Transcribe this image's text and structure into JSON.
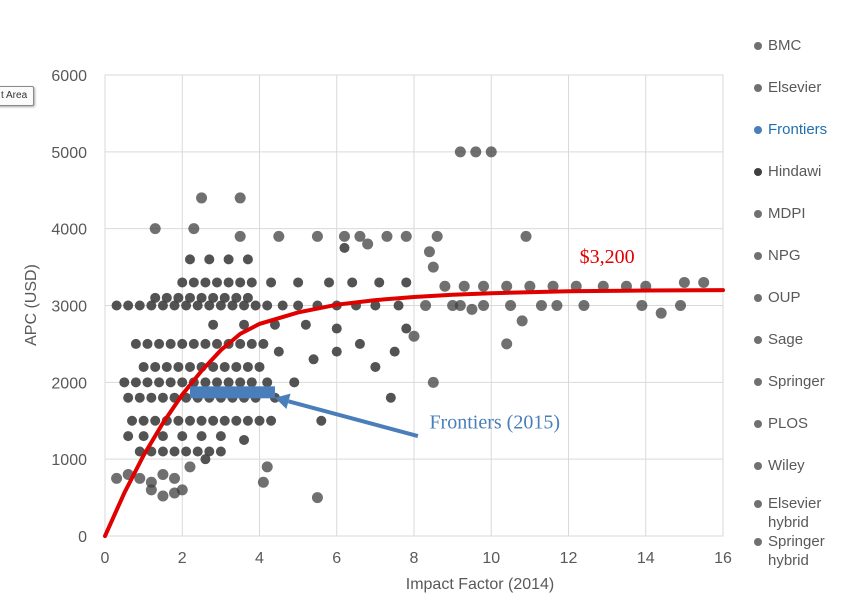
{
  "chart_data": {
    "type": "scatter",
    "title": "",
    "xlabel": "Impact Factor (2014)",
    "ylabel": "APC (USD)",
    "xlim": [
      0,
      16
    ],
    "ylim": [
      0,
      6000
    ],
    "x_ticks": [
      "0",
      "2",
      "4",
      "6",
      "8",
      "10",
      "12",
      "14",
      "16"
    ],
    "y_ticks": [
      "0",
      "1000",
      "2000",
      "3000",
      "4000",
      "5000",
      "6000"
    ],
    "grid": true,
    "legend_position": "right",
    "colors": {
      "points": "#404040",
      "trend": "#e00000",
      "frontiers": "#4a7ebb",
      "grid": "#d9d9d9"
    },
    "series": [
      {
        "name": "BMC",
        "color": "#707070"
      },
      {
        "name": "Elsevier",
        "color": "#707070"
      },
      {
        "name": "Frontiers",
        "color": "#4a7ebb"
      },
      {
        "name": "Hindawi",
        "color": "#404040"
      },
      {
        "name": "MDPI",
        "color": "#707070"
      },
      {
        "name": "NPG",
        "color": "#707070"
      },
      {
        "name": "OUP",
        "color": "#707070"
      },
      {
        "name": "Sage",
        "color": "#707070"
      },
      {
        "name": "Springer",
        "color": "#707070"
      },
      {
        "name": "PLOS",
        "color": "#707070"
      },
      {
        "name": "Wiley",
        "color": "#707070"
      },
      {
        "name": "Elsevier hybrid",
        "color": "#707070"
      },
      {
        "name": "Springer hybrid",
        "color": "#707070"
      }
    ],
    "points": [
      {
        "x": 0.3,
        "y": 3000
      },
      {
        "x": 0.6,
        "y": 3000
      },
      {
        "x": 0.9,
        "y": 3000
      },
      {
        "x": 1.2,
        "y": 3000
      },
      {
        "x": 1.5,
        "y": 3000
      },
      {
        "x": 1.8,
        "y": 3000
      },
      {
        "x": 2.1,
        "y": 3000
      },
      {
        "x": 2.4,
        "y": 3000
      },
      {
        "x": 2.7,
        "y": 3000
      },
      {
        "x": 3.0,
        "y": 3000
      },
      {
        "x": 3.3,
        "y": 3000
      },
      {
        "x": 3.6,
        "y": 3000
      },
      {
        "x": 3.9,
        "y": 3000
      },
      {
        "x": 4.2,
        "y": 3000
      },
      {
        "x": 4.6,
        "y": 3000
      },
      {
        "x": 5.0,
        "y": 3000
      },
      {
        "x": 5.5,
        "y": 3000
      },
      {
        "x": 6.0,
        "y": 3000
      },
      {
        "x": 6.5,
        "y": 3000
      },
      {
        "x": 7.0,
        "y": 3000
      },
      {
        "x": 7.6,
        "y": 3000
      },
      {
        "x": 8.3,
        "y": 3000
      },
      {
        "x": 9.0,
        "y": 3000
      },
      {
        "x": 0.8,
        "y": 2500
      },
      {
        "x": 1.1,
        "y": 2500
      },
      {
        "x": 1.4,
        "y": 2500
      },
      {
        "x": 1.7,
        "y": 2500
      },
      {
        "x": 2.0,
        "y": 2500
      },
      {
        "x": 2.3,
        "y": 2500
      },
      {
        "x": 2.6,
        "y": 2500
      },
      {
        "x": 2.9,
        "y": 2500
      },
      {
        "x": 3.2,
        "y": 2500
      },
      {
        "x": 3.5,
        "y": 2500
      },
      {
        "x": 3.8,
        "y": 2500
      },
      {
        "x": 4.1,
        "y": 2500
      },
      {
        "x": 4.5,
        "y": 2400
      },
      {
        "x": 1.0,
        "y": 2200
      },
      {
        "x": 1.3,
        "y": 2200
      },
      {
        "x": 1.6,
        "y": 2200
      },
      {
        "x": 1.9,
        "y": 2200
      },
      {
        "x": 2.2,
        "y": 2200
      },
      {
        "x": 2.5,
        "y": 2200
      },
      {
        "x": 2.8,
        "y": 2200
      },
      {
        "x": 3.1,
        "y": 2200
      },
      {
        "x": 3.4,
        "y": 2200
      },
      {
        "x": 3.7,
        "y": 2200
      },
      {
        "x": 4.0,
        "y": 2200
      },
      {
        "x": 0.5,
        "y": 2000
      },
      {
        "x": 0.8,
        "y": 2000
      },
      {
        "x": 1.1,
        "y": 2000
      },
      {
        "x": 1.4,
        "y": 2000
      },
      {
        "x": 1.7,
        "y": 2000
      },
      {
        "x": 2.0,
        "y": 2000
      },
      {
        "x": 2.3,
        "y": 2000
      },
      {
        "x": 2.6,
        "y": 2000
      },
      {
        "x": 2.9,
        "y": 2000
      },
      {
        "x": 3.2,
        "y": 2000
      },
      {
        "x": 3.5,
        "y": 2000
      },
      {
        "x": 3.8,
        "y": 2000
      },
      {
        "x": 4.2,
        "y": 2000
      },
      {
        "x": 0.6,
        "y": 1800
      },
      {
        "x": 0.9,
        "y": 1800
      },
      {
        "x": 1.2,
        "y": 1800
      },
      {
        "x": 1.5,
        "y": 1800
      },
      {
        "x": 1.8,
        "y": 1800
      },
      {
        "x": 2.1,
        "y": 1800
      },
      {
        "x": 2.4,
        "y": 1800
      },
      {
        "x": 2.7,
        "y": 1800
      },
      {
        "x": 3.0,
        "y": 1800
      },
      {
        "x": 3.3,
        "y": 1800
      },
      {
        "x": 3.6,
        "y": 1800
      },
      {
        "x": 3.9,
        "y": 1800
      },
      {
        "x": 0.7,
        "y": 1500
      },
      {
        "x": 1.0,
        "y": 1500
      },
      {
        "x": 1.3,
        "y": 1500
      },
      {
        "x": 1.6,
        "y": 1500
      },
      {
        "x": 1.9,
        "y": 1500
      },
      {
        "x": 2.2,
        "y": 1500
      },
      {
        "x": 2.5,
        "y": 1500
      },
      {
        "x": 2.8,
        "y": 1500
      },
      {
        "x": 3.1,
        "y": 1500
      },
      {
        "x": 3.4,
        "y": 1500
      },
      {
        "x": 3.7,
        "y": 1500
      },
      {
        "x": 4.0,
        "y": 1500
      },
      {
        "x": 0.6,
        "y": 1300
      },
      {
        "x": 1.0,
        "y": 1300
      },
      {
        "x": 1.5,
        "y": 1300
      },
      {
        "x": 2.0,
        "y": 1300
      },
      {
        "x": 2.5,
        "y": 1300
      },
      {
        "x": 3.0,
        "y": 1300
      },
      {
        "x": 3.6,
        "y": 1250
      },
      {
        "x": 0.9,
        "y": 1100
      },
      {
        "x": 1.2,
        "y": 1100
      },
      {
        "x": 1.5,
        "y": 1100
      },
      {
        "x": 1.8,
        "y": 1100
      },
      {
        "x": 2.1,
        "y": 1100
      },
      {
        "x": 2.4,
        "y": 1100
      },
      {
        "x": 2.7,
        "y": 1100
      },
      {
        "x": 3.0,
        "y": 1100
      },
      {
        "x": 0.3,
        "y": 750
      },
      {
        "x": 0.6,
        "y": 800
      },
      {
        "x": 0.9,
        "y": 750
      },
      {
        "x": 1.2,
        "y": 700
      },
      {
        "x": 1.5,
        "y": 800
      },
      {
        "x": 1.8,
        "y": 750
      },
      {
        "x": 2.2,
        "y": 900
      },
      {
        "x": 2.6,
        "y": 1000
      },
      {
        "x": 1.2,
        "y": 600
      },
      {
        "x": 1.5,
        "y": 520
      },
      {
        "x": 1.8,
        "y": 560
      },
      {
        "x": 2.0,
        "y": 600
      },
      {
        "x": 4.1,
        "y": 700
      },
      {
        "x": 4.2,
        "y": 900
      },
      {
        "x": 5.5,
        "y": 500
      },
      {
        "x": 8.5,
        "y": 2000
      },
      {
        "x": 1.3,
        "y": 3100
      },
      {
        "x": 1.6,
        "y": 3100
      },
      {
        "x": 1.9,
        "y": 3100
      },
      {
        "x": 2.2,
        "y": 3100
      },
      {
        "x": 2.5,
        "y": 3100
      },
      {
        "x": 2.8,
        "y": 3100
      },
      {
        "x": 3.1,
        "y": 3100
      },
      {
        "x": 3.4,
        "y": 3100
      },
      {
        "x": 3.7,
        "y": 3100
      },
      {
        "x": 2.0,
        "y": 3300
      },
      {
        "x": 2.3,
        "y": 3300
      },
      {
        "x": 2.6,
        "y": 3300
      },
      {
        "x": 2.9,
        "y": 3300
      },
      {
        "x": 3.2,
        "y": 3300
      },
      {
        "x": 3.5,
        "y": 3300
      },
      {
        "x": 3.8,
        "y": 3300
      },
      {
        "x": 4.3,
        "y": 3300
      },
      {
        "x": 5.0,
        "y": 3300
      },
      {
        "x": 5.8,
        "y": 3300
      },
      {
        "x": 6.4,
        "y": 3300
      },
      {
        "x": 7.1,
        "y": 3300
      },
      {
        "x": 7.8,
        "y": 3300
      },
      {
        "x": 2.2,
        "y": 3600
      },
      {
        "x": 2.7,
        "y": 3600
      },
      {
        "x": 3.2,
        "y": 3600
      },
      {
        "x": 3.7,
        "y": 3600
      },
      {
        "x": 2.8,
        "y": 2750
      },
      {
        "x": 3.6,
        "y": 2750
      },
      {
        "x": 4.4,
        "y": 2750
      },
      {
        "x": 5.2,
        "y": 2750
      },
      {
        "x": 6.0,
        "y": 2700
      },
      {
        "x": 1.3,
        "y": 4000
      },
      {
        "x": 2.3,
        "y": 4000
      },
      {
        "x": 2.5,
        "y": 4400
      },
      {
        "x": 3.5,
        "y": 4400
      },
      {
        "x": 3.5,
        "y": 3900
      },
      {
        "x": 4.5,
        "y": 3900
      },
      {
        "x": 5.5,
        "y": 3900
      },
      {
        "x": 6.2,
        "y": 3900
      },
      {
        "x": 6.6,
        "y": 3900
      },
      {
        "x": 7.3,
        "y": 3900
      },
      {
        "x": 7.8,
        "y": 3900
      },
      {
        "x": 8.6,
        "y": 3900
      },
      {
        "x": 10.9,
        "y": 3900
      },
      {
        "x": 6.2,
        "y": 3750
      },
      {
        "x": 6.8,
        "y": 3800
      },
      {
        "x": 8.4,
        "y": 3700
      },
      {
        "x": 8.5,
        "y": 3500
      },
      {
        "x": 9.2,
        "y": 5000
      },
      {
        "x": 9.6,
        "y": 5000
      },
      {
        "x": 10.0,
        "y": 5000
      },
      {
        "x": 8.8,
        "y": 3250
      },
      {
        "x": 9.3,
        "y": 3250
      },
      {
        "x": 9.8,
        "y": 3250
      },
      {
        "x": 10.4,
        "y": 3250
      },
      {
        "x": 11.0,
        "y": 3250
      },
      {
        "x": 11.6,
        "y": 3250
      },
      {
        "x": 12.2,
        "y": 3250
      },
      {
        "x": 12.9,
        "y": 3250
      },
      {
        "x": 13.5,
        "y": 3250
      },
      {
        "x": 14.0,
        "y": 3250
      },
      {
        "x": 15.0,
        "y": 3300
      },
      {
        "x": 15.5,
        "y": 3300
      },
      {
        "x": 9.2,
        "y": 3000
      },
      {
        "x": 9.8,
        "y": 3000
      },
      {
        "x": 10.5,
        "y": 3000
      },
      {
        "x": 11.3,
        "y": 3000
      },
      {
        "x": 11.7,
        "y": 3000
      },
      {
        "x": 12.4,
        "y": 3000
      },
      {
        "x": 13.9,
        "y": 3000
      },
      {
        "x": 14.9,
        "y": 3000
      },
      {
        "x": 9.5,
        "y": 2950
      },
      {
        "x": 14.4,
        "y": 2900
      },
      {
        "x": 10.8,
        "y": 2800
      },
      {
        "x": 10.4,
        "y": 2500
      },
      {
        "x": 8.0,
        "y": 2600
      },
      {
        "x": 7.8,
        "y": 2700
      },
      {
        "x": 7.5,
        "y": 2400
      },
      {
        "x": 7.0,
        "y": 2200
      },
      {
        "x": 7.4,
        "y": 1800
      },
      {
        "x": 6.6,
        "y": 2500
      },
      {
        "x": 6.0,
        "y": 2400
      },
      {
        "x": 5.4,
        "y": 2300
      },
      {
        "x": 5.6,
        "y": 1500
      },
      {
        "x": 4.9,
        "y": 2000
      },
      {
        "x": 4.4,
        "y": 1800
      },
      {
        "x": 4.3,
        "y": 1500
      }
    ],
    "trend_line": [
      {
        "x": 0,
        "y": 0
      },
      {
        "x": 0.5,
        "y": 560
      },
      {
        "x": 1,
        "y": 1050
      },
      {
        "x": 1.5,
        "y": 1470
      },
      {
        "x": 2,
        "y": 1840
      },
      {
        "x": 2.5,
        "y": 2150
      },
      {
        "x": 3,
        "y": 2420
      },
      {
        "x": 3.5,
        "y": 2630
      },
      {
        "x": 4,
        "y": 2760
      },
      {
        "x": 5,
        "y": 2910
      },
      {
        "x": 6,
        "y": 3010
      },
      {
        "x": 7,
        "y": 3070
      },
      {
        "x": 8,
        "y": 3110
      },
      {
        "x": 9,
        "y": 3140
      },
      {
        "x": 10,
        "y": 3160
      },
      {
        "x": 12,
        "y": 3185
      },
      {
        "x": 14,
        "y": 3195
      },
      {
        "x": 16,
        "y": 3200
      }
    ],
    "trend_label": "$3,200",
    "trend_label_at": {
      "x": 13,
      "y": 3550
    },
    "frontiers_bar": {
      "x_start": 2.2,
      "x_end": 4.4,
      "y": 1870
    },
    "arrow": {
      "from": {
        "x": 8.1,
        "y": 1300
      },
      "to": {
        "x": 4.4,
        "y": 1800
      }
    },
    "annotation_label": "Frontiers (2015)",
    "annotation_at": {
      "x": 8.4,
      "y": 1400
    }
  },
  "ui": {
    "badge_label": "t Area"
  }
}
